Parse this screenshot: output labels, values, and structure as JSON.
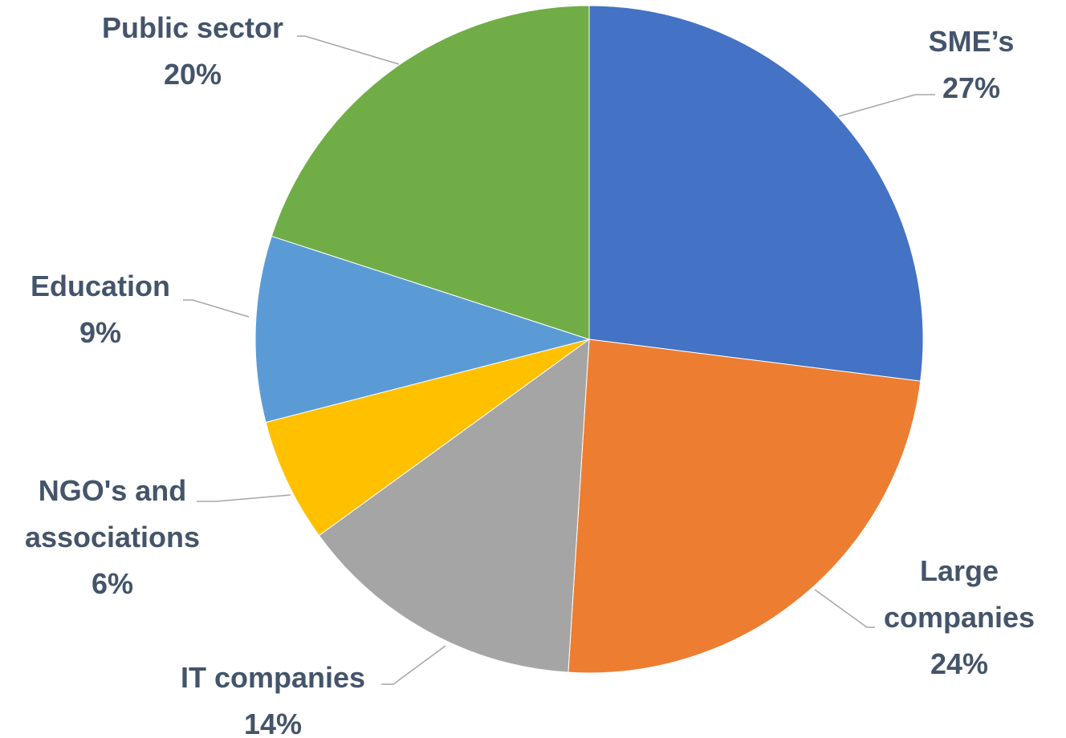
{
  "chart_data": {
    "type": "pie",
    "categories": [
      "SME’s",
      "Large companies",
      "IT companies",
      "NGO's and associations",
      "Education",
      "Public sector"
    ],
    "values": [
      27,
      24,
      14,
      6,
      9,
      20
    ],
    "value_labels": [
      "27%",
      "24%",
      "14%",
      "6%",
      "9%",
      "20%"
    ],
    "colors": [
      "#4472C4",
      "#ED7D31",
      "#A5A5A5",
      "#FFC000",
      "#5B9BD5",
      "#70AD47"
    ]
  }
}
